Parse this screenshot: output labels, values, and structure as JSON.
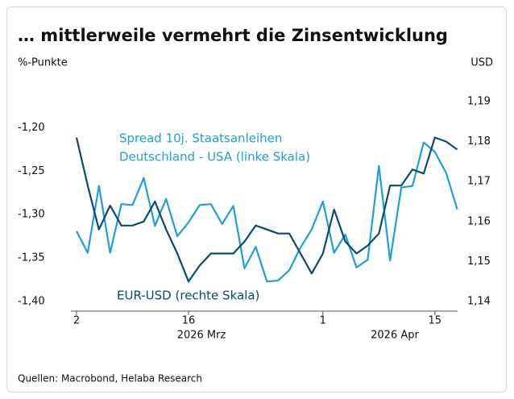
{
  "chart_data": {
    "type": "line",
    "title": "… mittlerweile vermehrt die Zinsentwicklung",
    "ylabel": "%-Punkte",
    "y2label": "USD",
    "source": "Quellen: Macrobond, Helaba Research",
    "month_labels": [
      "2026 Mrz",
      "2026 Apr"
    ],
    "categories": [
      "2",
      null,
      null,
      null,
      null,
      null,
      null,
      null,
      null,
      null,
      "16",
      null,
      null,
      null,
      null,
      null,
      null,
      null,
      null,
      null,
      null,
      null,
      "1",
      null,
      null,
      null,
      null,
      null,
      null,
      null,
      null,
      null,
      "15",
      null,
      null
    ],
    "ylim": [
      -1.4,
      -1.17
    ],
    "yticks": [
      {
        "value": -1.4,
        "label": "-1,40"
      },
      {
        "value": -1.35,
        "label": "-1,35"
      },
      {
        "value": -1.3,
        "label": "-1,30"
      },
      {
        "value": -1.25,
        "label": "-1,25"
      },
      {
        "value": -1.2,
        "label": "-1,20"
      }
    ],
    "y2lim": [
      1.14,
      1.19
    ],
    "y2ticks": [
      {
        "value": 1.14,
        "label": "1,14"
      },
      {
        "value": 1.15,
        "label": "1,15"
      },
      {
        "value": 1.16,
        "label": "1,16"
      },
      {
        "value": 1.17,
        "label": "1,17"
      },
      {
        "value": 1.18,
        "label": "1,18"
      },
      {
        "value": 1.19,
        "label": "1,19"
      }
    ],
    "series": [
      {
        "name": [
          "Spread 10j. Staatsanleihen",
          "Deutschland - USA (linke Skala)"
        ],
        "color": "#1f9fd9",
        "values": [
          -1.319,
          -1.344,
          -1.267,
          -1.344,
          -1.288,
          -1.289,
          -1.258,
          -1.313,
          -1.282,
          -1.325,
          -1.309,
          -1.289,
          -1.288,
          -1.311,
          -1.29,
          -1.362,
          -1.337,
          -1.377,
          -1.376,
          -1.364,
          -1.338,
          -1.317,
          -1.285,
          -1.344,
          -1.323,
          -1.361,
          -1.352,
          -1.244,
          -1.353,
          -1.269,
          -1.267,
          -1.217,
          -1.228,
          -1.252,
          -1.294
        ]
      },
      {
        "name": [
          "EUR-USD (rechte Skala)"
        ],
        "color": "#0d4a6b",
        "axis": "y2",
        "values": [
          1.181,
          1.169,
          1.158,
          1.164,
          1.159,
          1.159,
          1.16,
          1.165,
          1.158,
          1.152,
          1.145,
          1.149,
          1.152,
          1.152,
          1.152,
          1.155,
          1.159,
          1.158,
          1.157,
          1.157,
          1.152,
          1.147,
          1.152,
          1.163,
          1.155,
          1.152,
          1.154,
          1.157,
          1.169,
          1.169,
          1.173,
          1.172,
          1.181,
          1.18,
          1.178
        ]
      }
    ]
  }
}
